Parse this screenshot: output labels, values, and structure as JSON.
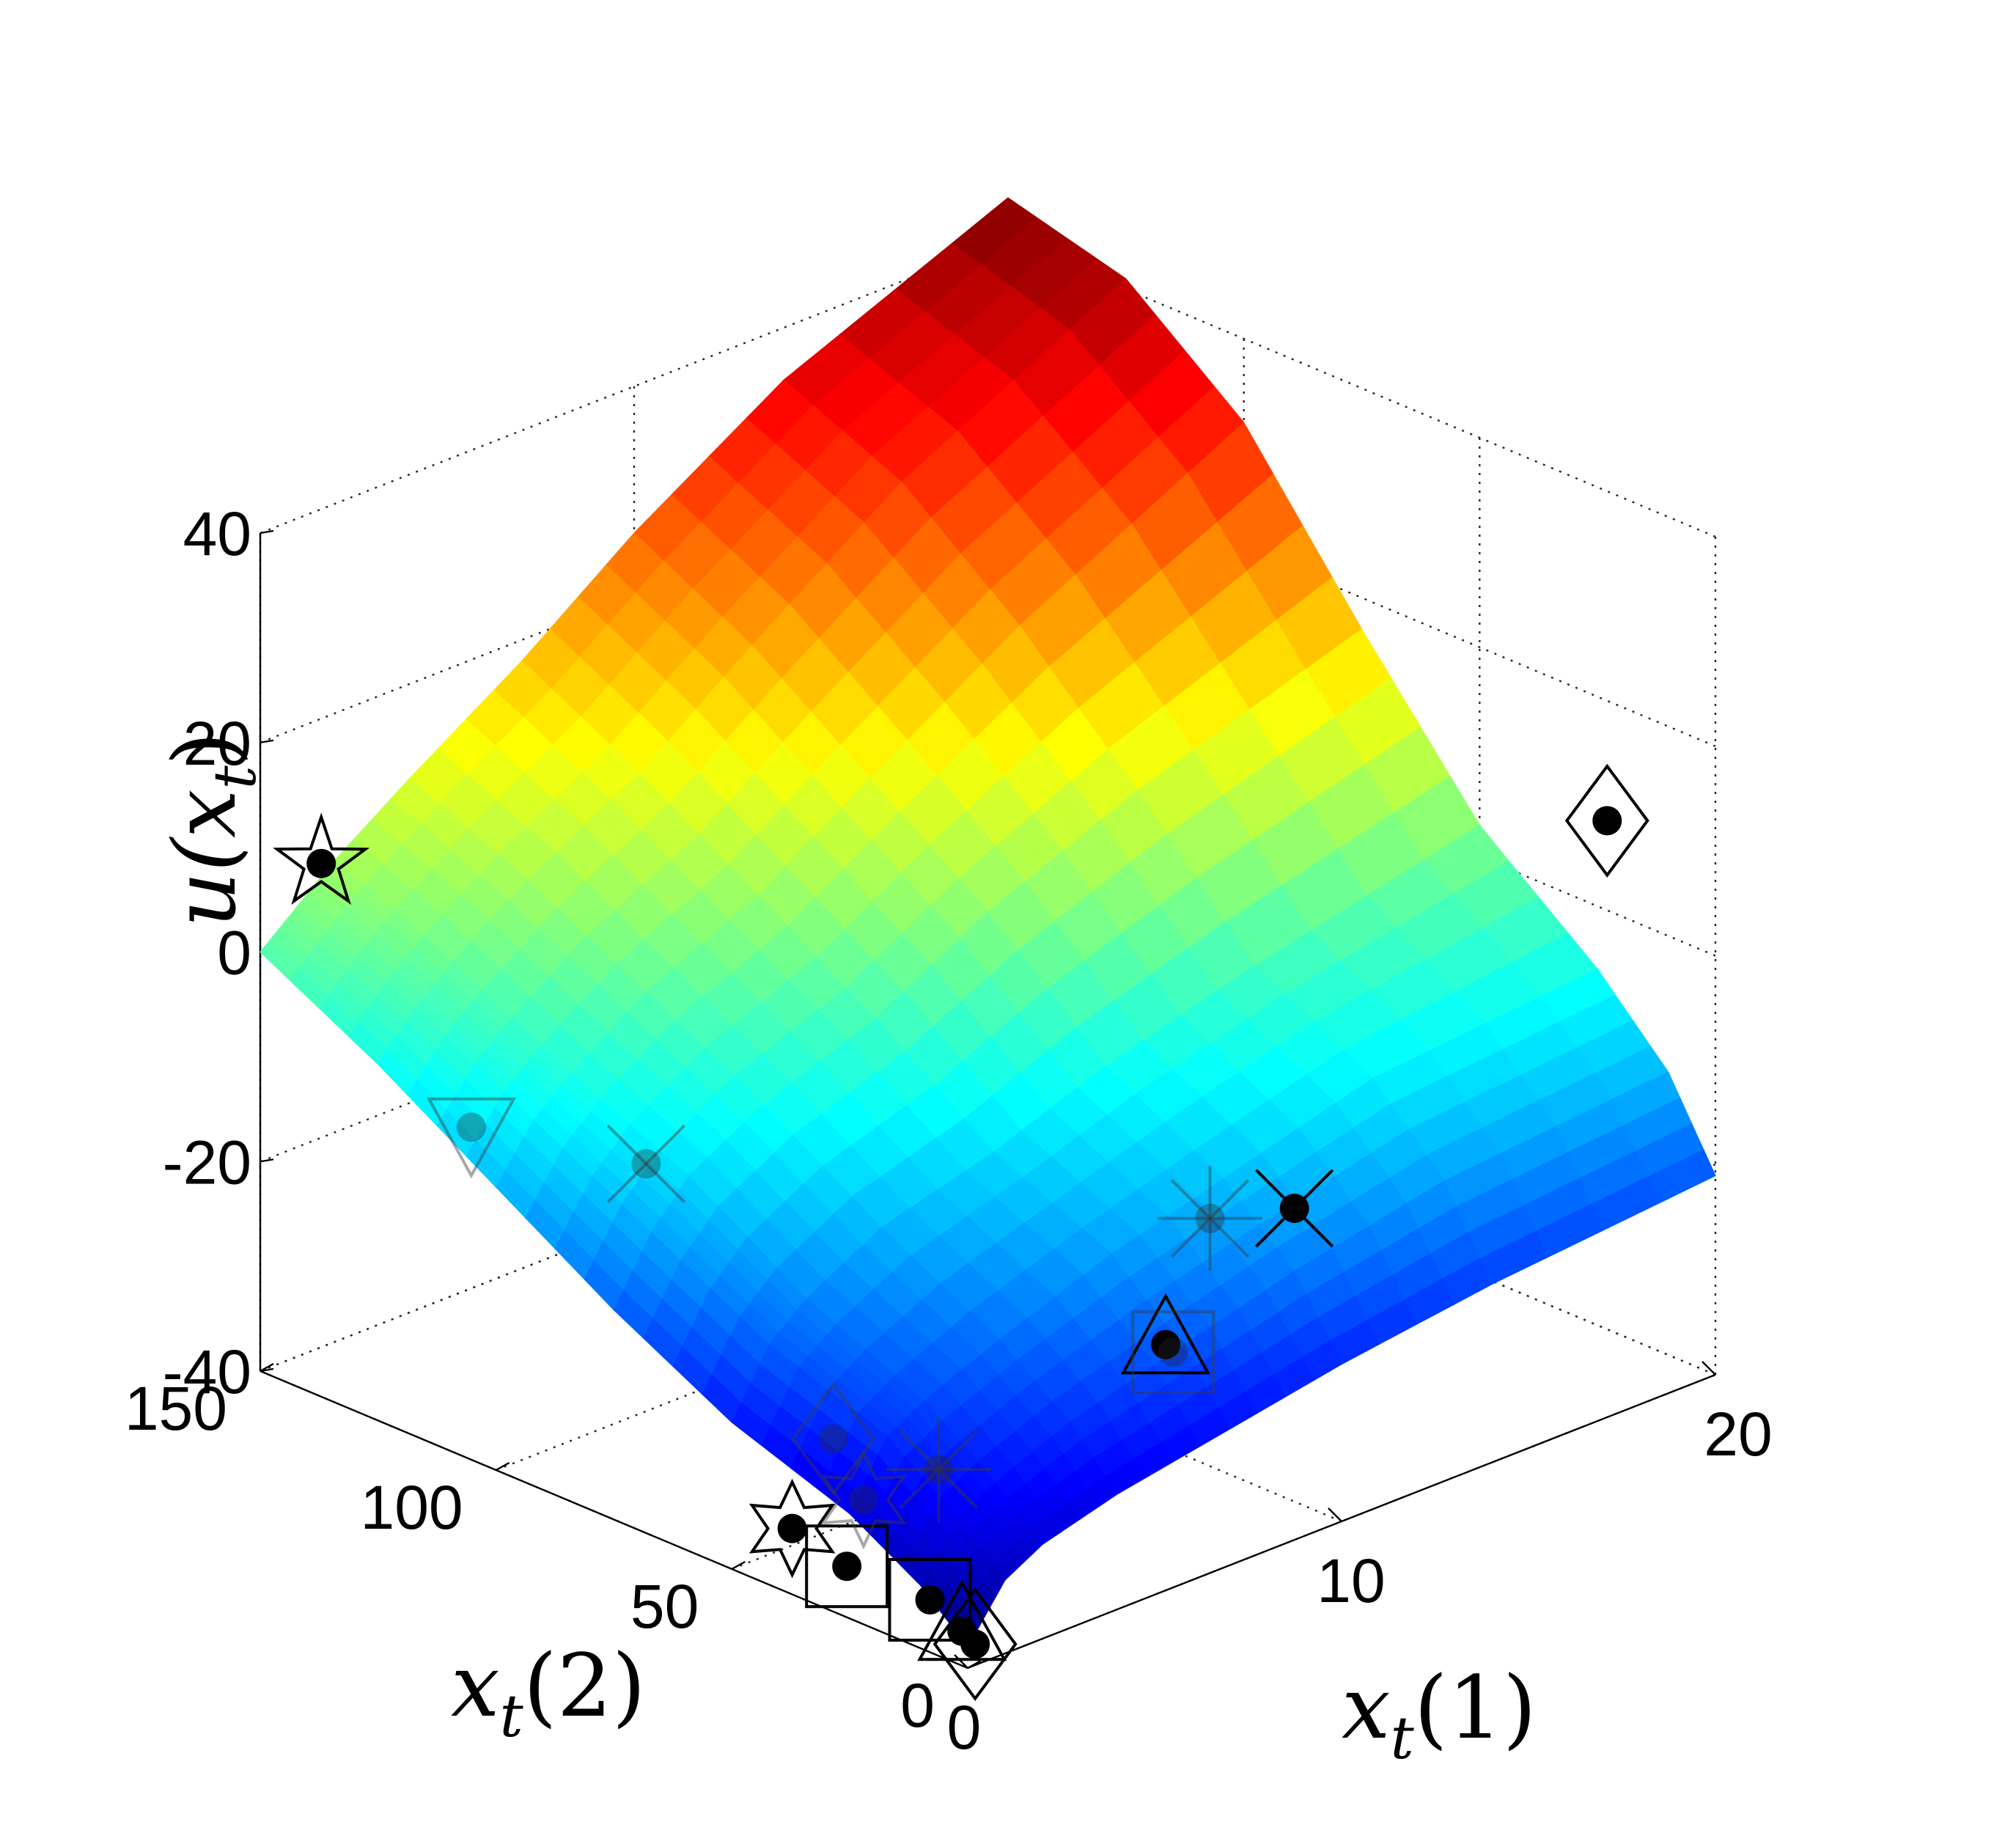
{
  "chart_data": {
    "type": "surface3d",
    "title": "",
    "xlabel": {
      "base": "x",
      "sub": "t",
      "arg": "(1)"
    },
    "ylabel": {
      "base": "x",
      "sub": "t",
      "arg": "(2)"
    },
    "zlabel": {
      "base": "u(x",
      "sub": "t",
      "close": ")"
    },
    "xlim": [
      0,
      20
    ],
    "ylim": [
      0,
      150
    ],
    "zlim": [
      -40,
      40
    ],
    "x_ticks": [
      0,
      10,
      20
    ],
    "y_ticks": [
      0,
      50,
      100,
      150
    ],
    "z_ticks": [
      -40,
      -20,
      0,
      20,
      40
    ],
    "x_tick_labels": [
      "0",
      "10",
      "20"
    ],
    "y_tick_labels": [
      "0",
      "50",
      "100",
      "150"
    ],
    "z_tick_labels": [
      "-40",
      "-20",
      "0",
      "20",
      "40"
    ],
    "grid": true,
    "colormap": "jet",
    "surface": {
      "x": [
        0,
        1,
        2,
        4,
        7,
        10,
        14,
        20
      ],
      "y": [
        0,
        10,
        25,
        50,
        75,
        100,
        125,
        150
      ],
      "z": [
        [
          -38.0,
          -33.0,
          -31.0,
          -29.0,
          -27.0,
          -25.0,
          -23.0,
          -21.0
        ],
        [
          -34.0,
          -29.0,
          -27.0,
          -24.0,
          -21.0,
          -18.0,
          -15.0,
          -13.0
        ],
        [
          -30.0,
          -24.0,
          -22.0,
          -19.0,
          -15.0,
          -12.0,
          -8.0,
          -6.0
        ],
        [
          -26.0,
          -20.0,
          -17.0,
          -13.0,
          -10.0,
          -6.0,
          -2.0,
          3.0
        ],
        [
          -20.0,
          -14.0,
          -10.0,
          -6.0,
          -2.0,
          4.0,
          10.0,
          17.0
        ],
        [
          -13.0,
          -8.0,
          -5.0,
          0.0,
          5.0,
          12.0,
          21.0,
          32.0
        ],
        [
          -6.0,
          -2.0,
          1.0,
          6.0,
          12.0,
          20.0,
          30.0,
          41.0
        ],
        [
          0.0,
          3.0,
          6.0,
          11.0,
          18.0,
          26.0,
          35.0,
          44.0
        ]
      ]
    },
    "points": [
      {
        "x": 1.0,
        "y": 145,
        "z": 8,
        "marker": "star"
      },
      {
        "x": 19.5,
        "y": 19,
        "z": 10,
        "marker": "diamond"
      },
      {
        "x": 0.2,
        "y": 0,
        "z": -38,
        "marker": "diamond"
      },
      {
        "x": 0.1,
        "y": 2,
        "z": -37,
        "marker": "triangle-up"
      },
      {
        "x": 0.0,
        "y": 8,
        "z": -35,
        "marker": "square"
      },
      {
        "x": 0.3,
        "y": 28,
        "z": -36,
        "marker": "square"
      },
      {
        "x": 0.1,
        "y": 38,
        "z": -34,
        "marker": "hexagram"
      },
      {
        "x": 5.8,
        "y": 4,
        "z": -18,
        "marker": "triangle-up"
      },
      {
        "x": 10.0,
        "y": 10,
        "z": -12,
        "marker": "x"
      },
      {
        "x": 0.6,
        "y": 110,
        "z": -10,
        "marker": "triangle-down",
        "embedded": true
      },
      {
        "x": 2.5,
        "y": 88,
        "z": -12,
        "marker": "x",
        "embedded": true
      },
      {
        "x": 8.5,
        "y": 16,
        "z": -12,
        "marker": "asterisk",
        "embedded": true
      },
      {
        "x": 6.0,
        "y": 4,
        "z": -19,
        "marker": "square",
        "embedded": true
      },
      {
        "x": 1.2,
        "y": 38,
        "z": -27,
        "marker": "diamond",
        "embedded": true
      },
      {
        "x": 2.0,
        "y": 22,
        "z": -28,
        "marker": "asterisk",
        "embedded": true
      },
      {
        "x": 1.0,
        "y": 30,
        "z": -31,
        "marker": "hexagram",
        "embedded": true
      }
    ]
  }
}
